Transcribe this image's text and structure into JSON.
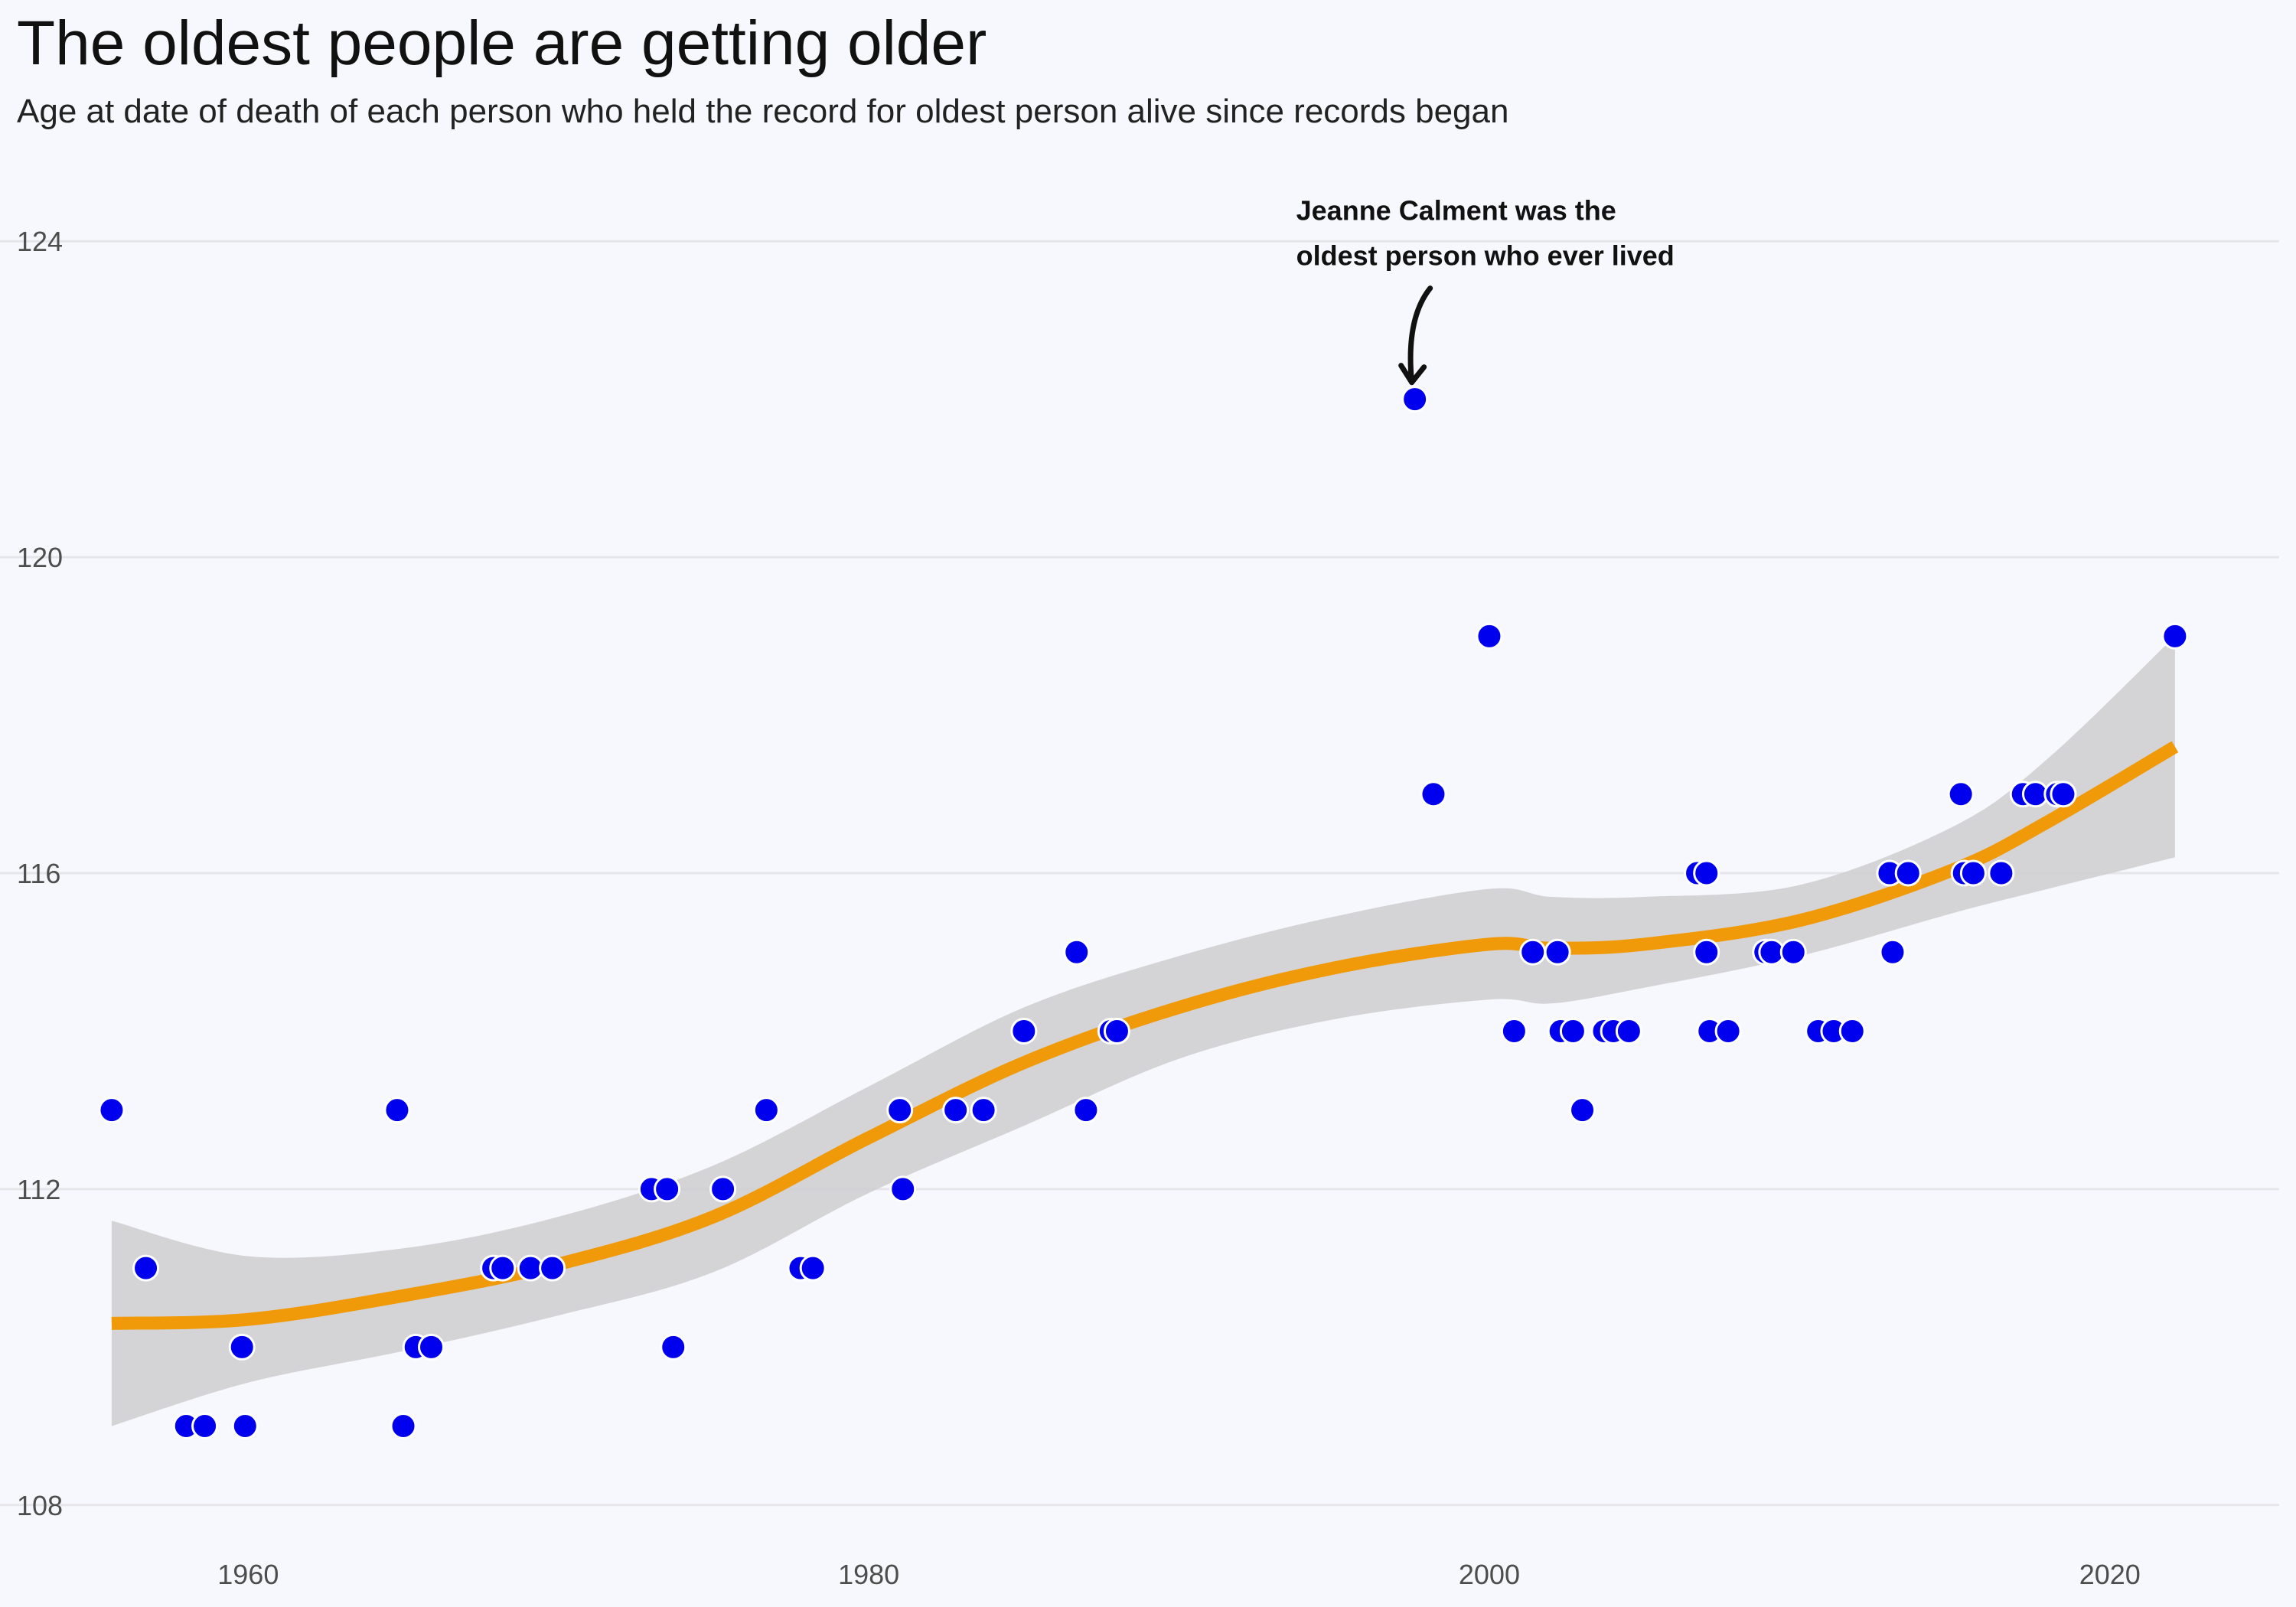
{
  "title": "The oldest people are getting older",
  "subtitle": "Age at date of death of each person who held the record for oldest person alive since records began",
  "colors": {
    "background": "#f7f8fd",
    "grid": "#e6e6ea",
    "points": "#0000ee",
    "point_outline": "#ffffff",
    "trend": "#f09a0a",
    "ribbon": "#cfcfd3",
    "annotation": "#111111"
  },
  "chart_data": {
    "type": "scatter",
    "title": "The oldest people are getting older",
    "subtitle": "Age at date of death of each person who held the record for oldest person alive since records began",
    "xlim": [
      1952,
      2026
    ],
    "ylim": [
      107,
      125
    ],
    "x_ticks": [
      1960,
      1980,
      2000,
      2020
    ],
    "y_ticks": [
      108,
      112,
      116,
      120,
      124
    ],
    "grid": "horizontal",
    "points": [
      [
        1955.6,
        113
      ],
      [
        1956.7,
        111
      ],
      [
        1958.0,
        109
      ],
      [
        1958.6,
        109
      ],
      [
        1959.8,
        110
      ],
      [
        1959.9,
        109
      ],
      [
        1964.8,
        113
      ],
      [
        1965.0,
        109
      ],
      [
        1965.4,
        110
      ],
      [
        1965.9,
        110
      ],
      [
        1967.9,
        111
      ],
      [
        1968.2,
        111
      ],
      [
        1969.1,
        111
      ],
      [
        1969.8,
        111
      ],
      [
        1973.0,
        112
      ],
      [
        1973.5,
        112
      ],
      [
        1973.7,
        110
      ],
      [
        1975.3,
        112
      ],
      [
        1976.7,
        113
      ],
      [
        1977.8,
        111
      ],
      [
        1978.2,
        111
      ],
      [
        1981.0,
        113
      ],
      [
        1981.1,
        112
      ],
      [
        1982.8,
        113
      ],
      [
        1983.7,
        113
      ],
      [
        1985.0,
        114
      ],
      [
        1986.7,
        115
      ],
      [
        1987.0,
        113
      ],
      [
        1987.8,
        114
      ],
      [
        1988.0,
        114
      ],
      [
        1997.6,
        122
      ],
      [
        1998.2,
        117
      ],
      [
        2000.0,
        119
      ],
      [
        2000.8,
        114
      ],
      [
        2001.4,
        115
      ],
      [
        2002.2,
        115
      ],
      [
        2002.3,
        114
      ],
      [
        2002.7,
        114
      ],
      [
        2003.0,
        113
      ],
      [
        2003.7,
        114
      ],
      [
        2004.0,
        114
      ],
      [
        2004.5,
        114
      ],
      [
        2006.7,
        116
      ],
      [
        2007.0,
        116
      ],
      [
        2007.0,
        115
      ],
      [
        2007.1,
        114
      ],
      [
        2007.7,
        114
      ],
      [
        2008.9,
        115
      ],
      [
        2009.1,
        115
      ],
      [
        2009.8,
        115
      ],
      [
        2010.6,
        114
      ],
      [
        2011.1,
        114
      ],
      [
        2011.7,
        114
      ],
      [
        2012.9,
        116
      ],
      [
        2013.0,
        115
      ],
      [
        2013.5,
        116
      ],
      [
        2015.2,
        117
      ],
      [
        2015.3,
        116
      ],
      [
        2015.6,
        116
      ],
      [
        2016.5,
        116
      ],
      [
        2017.2,
        117
      ],
      [
        2017.6,
        117
      ],
      [
        2018.3,
        117
      ],
      [
        2018.5,
        117
      ],
      [
        2022.1,
        119
      ]
    ],
    "trend": {
      "x": [
        1955.6,
        1960,
        1965,
        1970,
        1975,
        1980,
        1985,
        1990,
        1995,
        2000,
        2002,
        2005,
        2010,
        2015,
        2018,
        2022.1
      ],
      "y": [
        110.3,
        110.35,
        110.65,
        111.05,
        111.65,
        112.65,
        113.6,
        114.3,
        114.8,
        115.1,
        115.05,
        115.1,
        115.4,
        116.05,
        116.65,
        117.6
      ],
      "lower": [
        109.0,
        109.55,
        109.95,
        110.4,
        110.95,
        111.95,
        112.8,
        113.65,
        114.15,
        114.4,
        114.35,
        114.55,
        114.95,
        115.5,
        115.8,
        116.2
      ],
      "upper": [
        111.6,
        111.15,
        111.25,
        111.65,
        112.3,
        113.3,
        114.3,
        114.95,
        115.45,
        115.8,
        115.7,
        115.7,
        115.85,
        116.6,
        117.45,
        119.0
      ]
    },
    "annotation": {
      "lines": [
        "Jeanne Calment was the",
        "oldest person who ever lived"
      ],
      "x": 1997.6,
      "y": 122
    }
  }
}
